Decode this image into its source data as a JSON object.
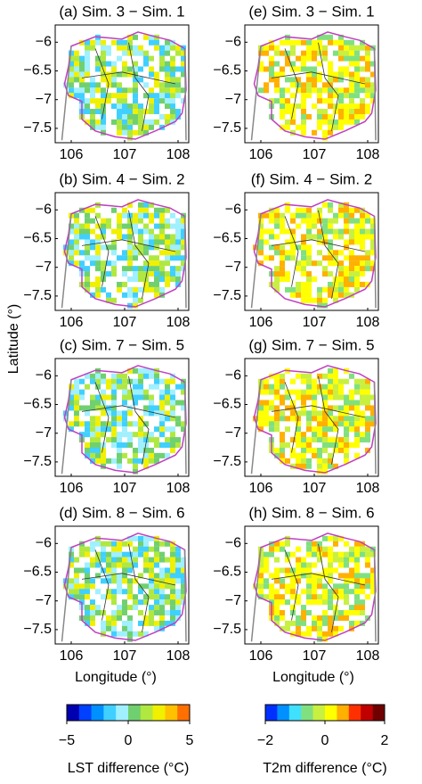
{
  "chart_data": [
    {
      "type": "map",
      "title": "(a) Sim. 3 − Sim. 1",
      "palette": "lst",
      "xlim": [
        105.7,
        108.2
      ],
      "ylim": [
        -7.75,
        -5.7
      ],
      "xticks": [
        106,
        107,
        108
      ],
      "yticks": [
        -6,
        -6.5,
        -7,
        -7.5
      ]
    },
    {
      "type": "map",
      "title": "(e) Sim. 3 − Sim. 1",
      "palette": "t2m",
      "xlim": [
        105.7,
        108.2
      ],
      "ylim": [
        -7.75,
        -5.7
      ],
      "xticks": [
        106,
        107,
        108
      ],
      "yticks": [
        -6,
        -6.5,
        -7,
        -7.5
      ]
    },
    {
      "type": "map",
      "title": "(b) Sim. 4 − Sim. 2",
      "palette": "lst",
      "xlim": [
        105.7,
        108.2
      ],
      "ylim": [
        -7.75,
        -5.7
      ],
      "xticks": [
        106,
        107,
        108
      ],
      "yticks": [
        -6,
        -6.5,
        -7,
        -7.5
      ]
    },
    {
      "type": "map",
      "title": "(f) Sim. 4 − Sim. 2",
      "palette": "t2m",
      "xlim": [
        105.7,
        108.2
      ],
      "ylim": [
        -7.75,
        -5.7
      ],
      "xticks": [
        106,
        107,
        108
      ],
      "yticks": [
        -6,
        -6.5,
        -7,
        -7.5
      ]
    },
    {
      "type": "map",
      "title": "(c) Sim. 7 − Sim. 5",
      "palette": "lst",
      "xlim": [
        105.7,
        108.2
      ],
      "ylim": [
        -7.75,
        -5.7
      ],
      "xticks": [
        106,
        107,
        108
      ],
      "yticks": [
        -6,
        -6.5,
        -7,
        -7.5
      ]
    },
    {
      "type": "map",
      "title": "(g) Sim. 7 − Sim. 5",
      "palette": "t2m",
      "xlim": [
        105.7,
        108.2
      ],
      "ylim": [
        -7.75,
        -5.7
      ],
      "xticks": [
        106,
        107,
        108
      ],
      "yticks": [
        -6,
        -6.5,
        -7,
        -7.5
      ]
    },
    {
      "type": "map",
      "title": "(d) Sim. 8 − Sim. 6",
      "palette": "lst",
      "xlim": [
        105.7,
        108.2
      ],
      "ylim": [
        -7.75,
        -5.7
      ],
      "xticks": [
        106,
        107,
        108
      ],
      "yticks": [
        -6,
        -6.5,
        -7,
        -7.5
      ]
    },
    {
      "type": "map",
      "title": "(h) Sim. 8 − Sim. 6",
      "palette": "t2m",
      "xlim": [
        105.7,
        108.2
      ],
      "ylim": [
        -7.75,
        -5.7
      ],
      "xticks": [
        106,
        107,
        108
      ],
      "yticks": [
        -6,
        -6.5,
        -7,
        -7.5
      ]
    }
  ],
  "xlabel": "Longitude (°)",
  "ylabel": "Latitude (°)",
  "colorbars": [
    {
      "label": "LST difference (°C)",
      "lim": [
        -5,
        5
      ],
      "ticks": [
        -5,
        0,
        5
      ],
      "colors": [
        "#0000b0",
        "#0040ff",
        "#0090ff",
        "#40d0ff",
        "#a0f0ff",
        "#70d070",
        "#b0e840",
        "#f0f000",
        "#ffc000",
        "#ff7000"
      ]
    },
    {
      "label": "T2m difference (°C)",
      "lim": [
        -2,
        2
      ],
      "ticks": [
        -2,
        0,
        2
      ],
      "colors": [
        "#0030ff",
        "#0090ff",
        "#40e0ff",
        "#80e080",
        "#c8f040",
        "#ffff00",
        "#ffb000",
        "#ff3000",
        "#c00000",
        "#700000"
      ]
    }
  ]
}
